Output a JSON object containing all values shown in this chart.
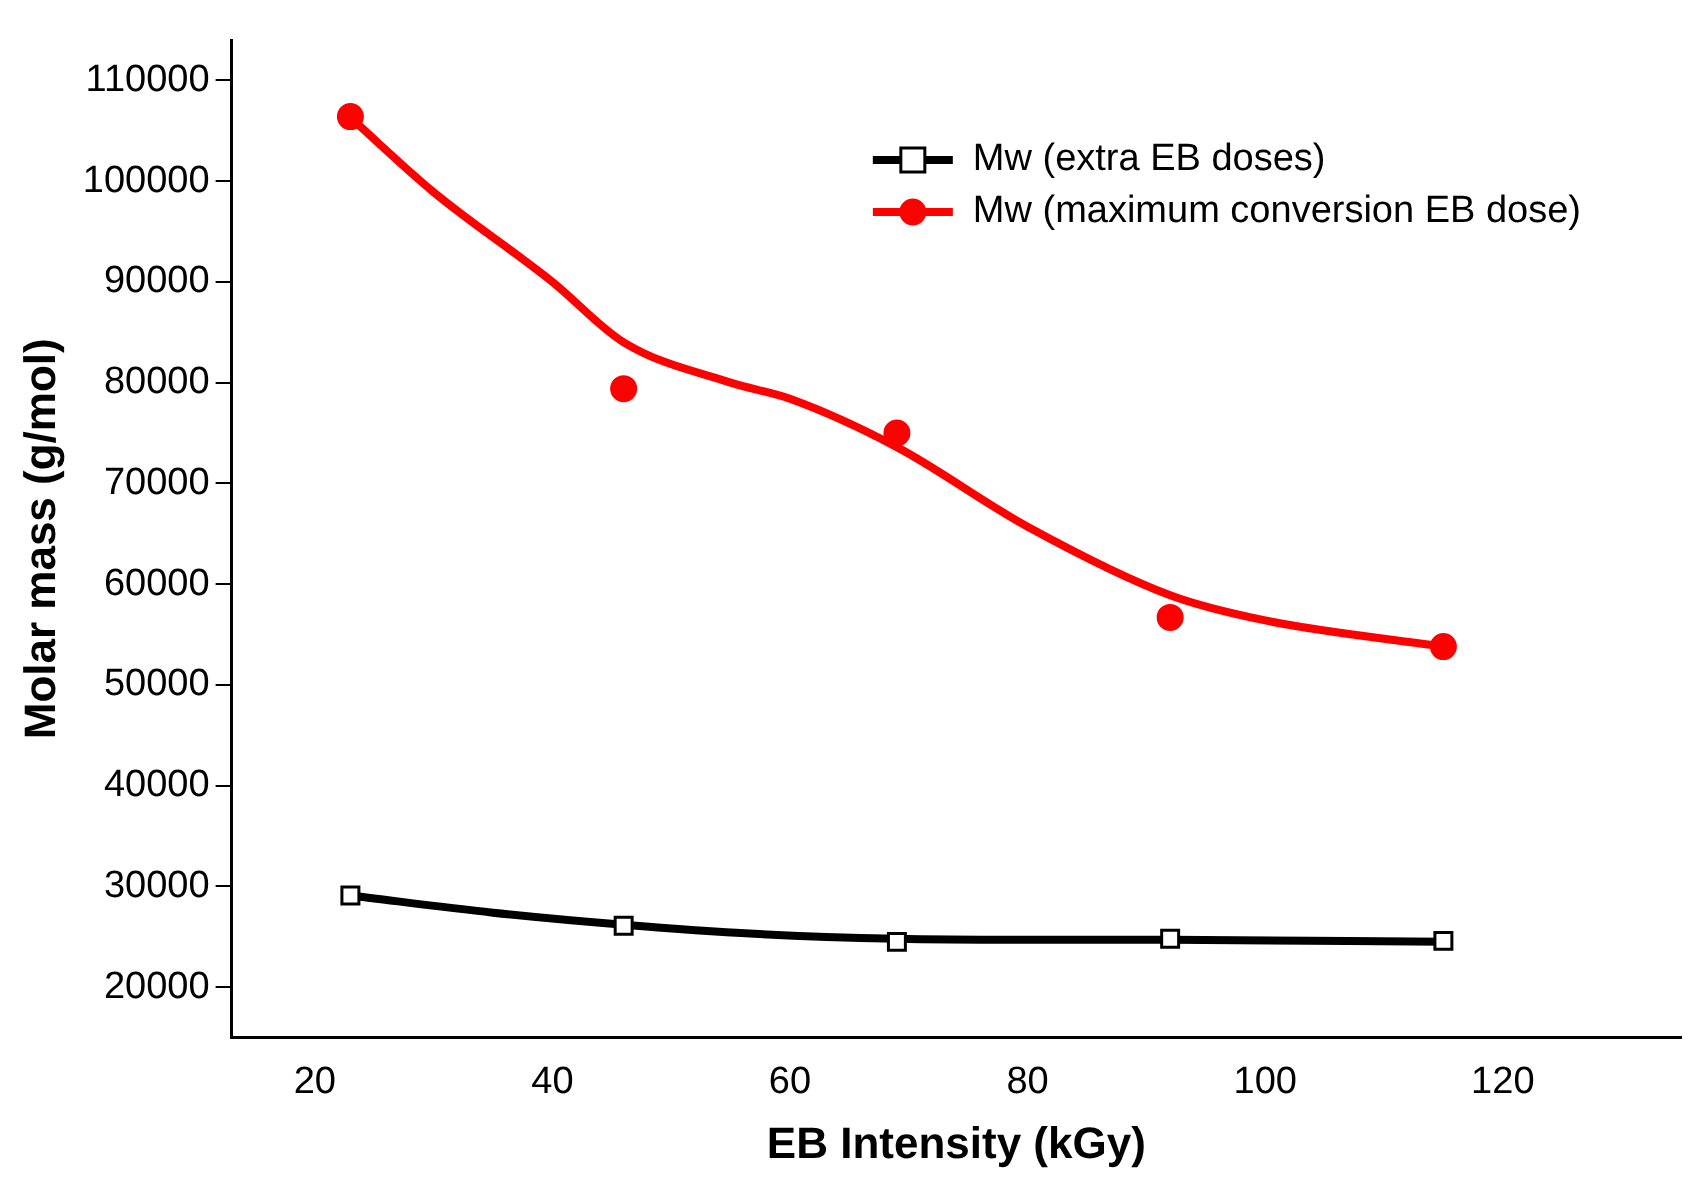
{
  "chart_data": {
    "type": "scatter",
    "xlabel": "EB Intensity (kGy)",
    "ylabel": "Molar mass (g/mol)",
    "xlim": [
      13,
      135
    ],
    "xticks": [
      20,
      40,
      60,
      80,
      100,
      120
    ],
    "ylim": [
      15000,
      114000
    ],
    "yticks": [
      20000,
      30000,
      40000,
      50000,
      60000,
      70000,
      80000,
      90000,
      100000,
      110000
    ],
    "grid": false,
    "legend": "top right",
    "series": [
      {
        "name": "Mw (extra EB doses)",
        "marker": "square",
        "color": "#000000",
        "x": [
          23,
          46,
          69,
          92,
          115
        ],
        "values": [
          29100,
          26100,
          24500,
          24800,
          24600
        ]
      },
      {
        "name": "Mw (maximum conversion EB dose)",
        "marker": "circle",
        "color": "#ff0000",
        "x": [
          23,
          46,
          69,
          92,
          115
        ],
        "values": [
          106400,
          79400,
          75000,
          56700,
          53800
        ]
      },
      {
        "type": "line",
        "color": "#000000",
        "x": [
          23,
          35,
          46,
          57,
          69,
          80,
          92,
          115
        ],
        "values": [
          29100,
          27400,
          26200,
          25300,
          24800,
          24700,
          24700,
          24500
        ]
      },
      {
        "type": "line",
        "color": "#ff0000",
        "x": [
          23,
          30,
          40,
          46,
          55,
          60,
          69,
          80,
          92,
          100,
          115
        ],
        "values": [
          106300,
          98900,
          90000,
          84000,
          80000,
          78400,
          73600,
          65700,
          58900,
          56400,
          53800
        ]
      }
    ]
  }
}
